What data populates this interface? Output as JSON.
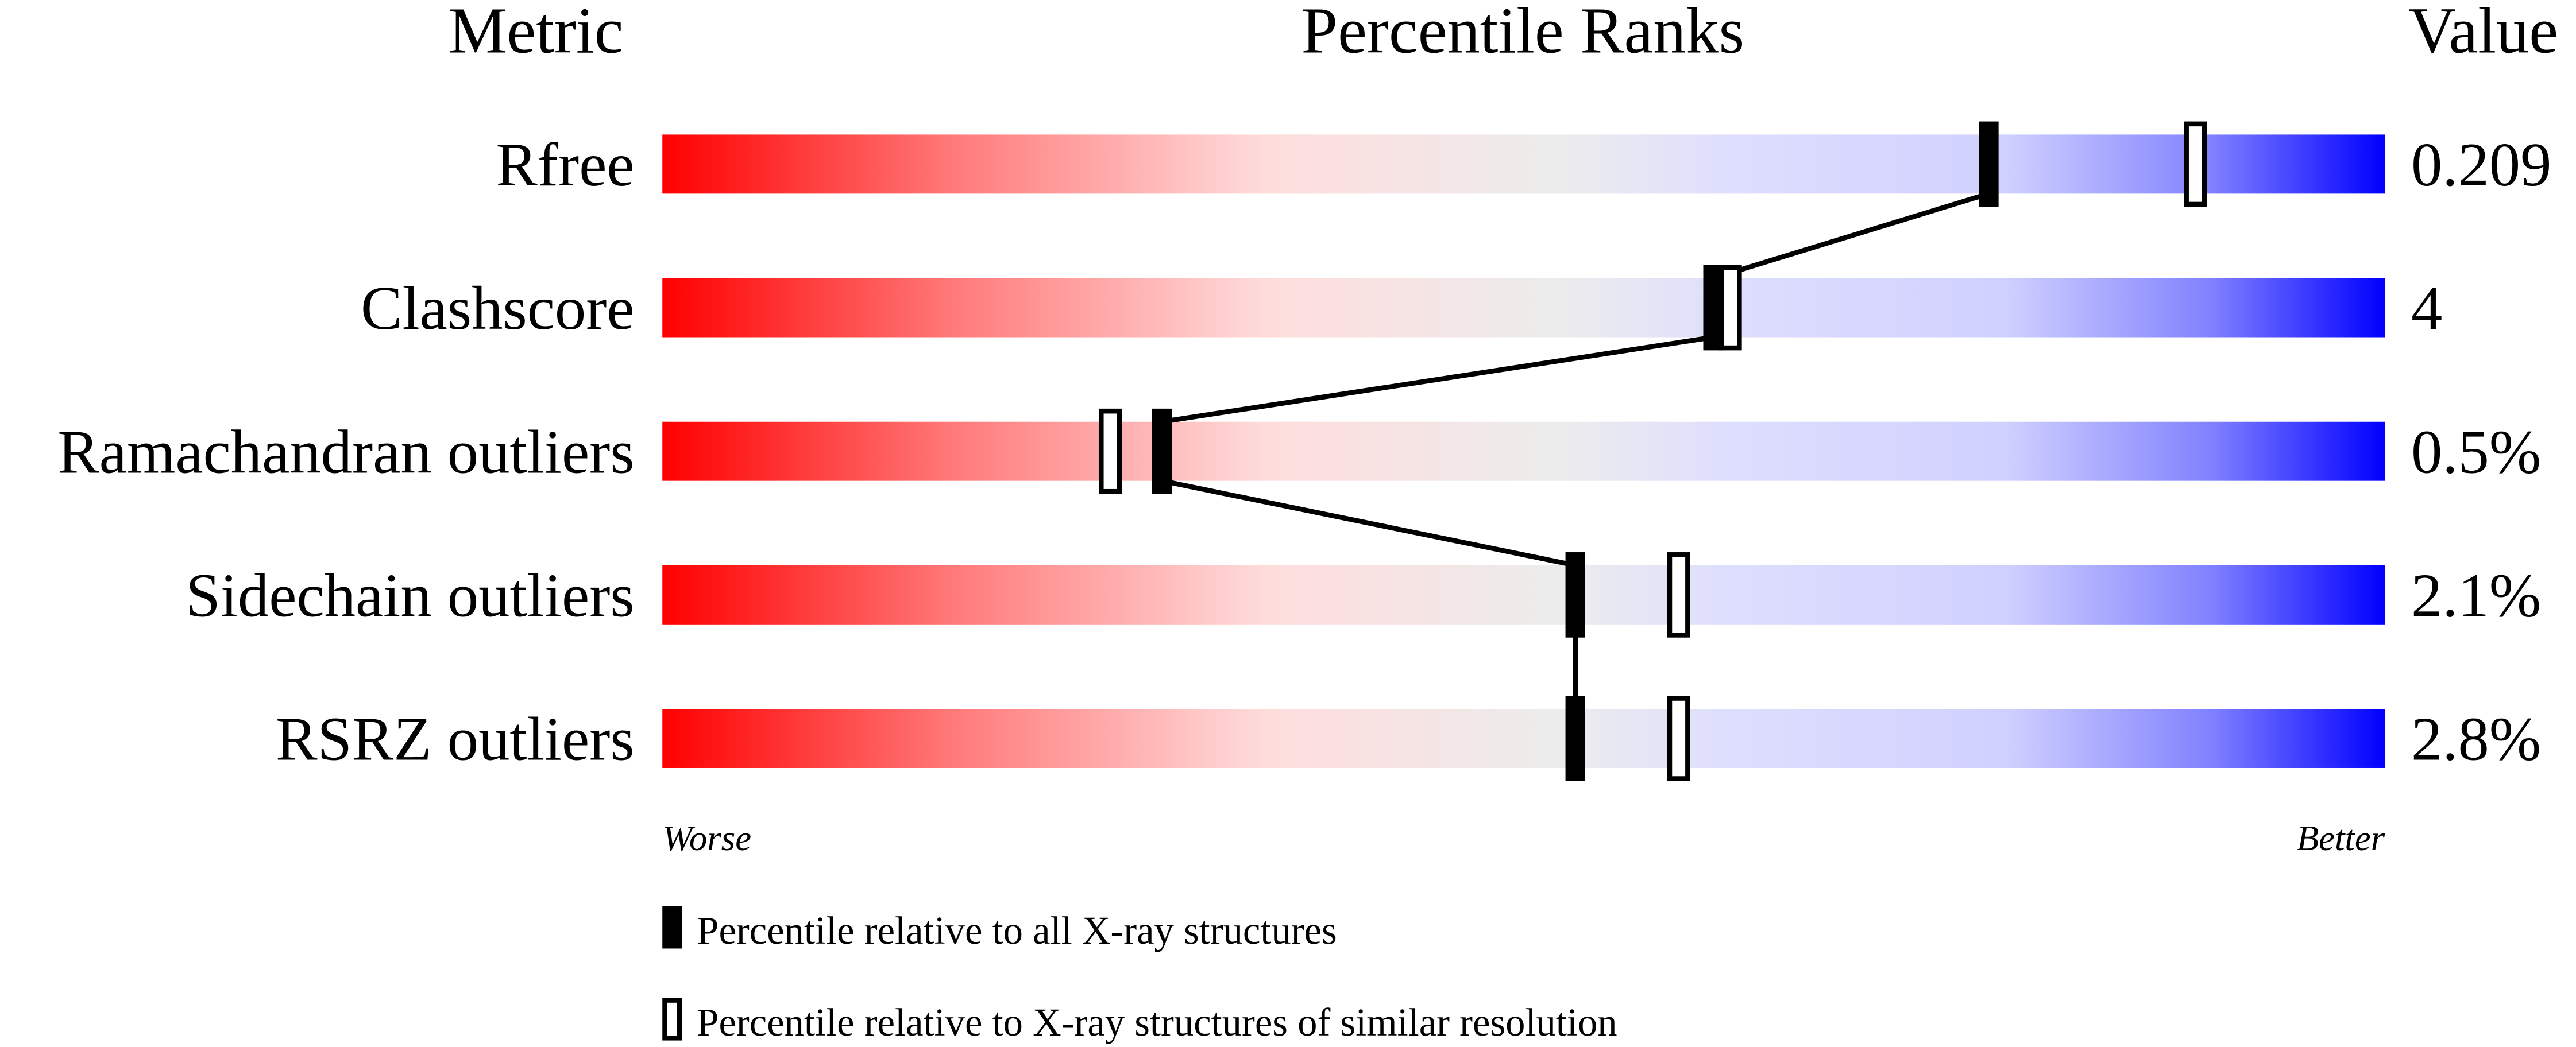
{
  "chart_data": {
    "type": "bar",
    "title": "Percentile Ranks",
    "column_headers": {
      "metric": "Metric",
      "ranks": "Percentile Ranks",
      "value": "Value"
    },
    "xlim": [
      0,
      100
    ],
    "axis_labels": {
      "left": "Worse",
      "right": "Better"
    },
    "gradient_colors": [
      "#ff0000",
      "#ff7a7a",
      "#ffdcdc",
      "#ececec",
      "#dedefe",
      "#d0d0fe",
      "#8080ff",
      "#0000ff"
    ],
    "rows": [
      {
        "metric": "Rfree",
        "value": "0.209",
        "percentile_all": 77,
        "percentile_similar": 89
      },
      {
        "metric": "Clashscore",
        "value": "4",
        "percentile_all": 61,
        "percentile_similar": 62
      },
      {
        "metric": "Ramachandran outliers",
        "value": "0.5%",
        "percentile_all": 29,
        "percentile_similar": 26
      },
      {
        "metric": "Sidechain outliers",
        "value": "2.1%",
        "percentile_all": 53,
        "percentile_similar": 59
      },
      {
        "metric": "RSRZ outliers",
        "value": "2.8%",
        "percentile_all": 53,
        "percentile_similar": 59
      }
    ],
    "legend": {
      "all": "Percentile relative to all X-ray structures",
      "similar": "Percentile relative to X-ray structures of similar resolution"
    }
  }
}
